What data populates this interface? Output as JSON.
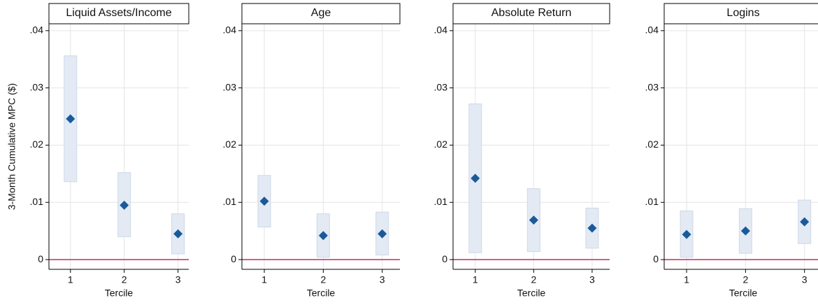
{
  "chart_data": [
    {
      "type": "scatter",
      "title": "Liquid Assets/Income",
      "ylabel": "3-Month Cumulative MPC ($)",
      "xlabel": "Tercile",
      "x": [
        1,
        2,
        3
      ],
      "values": [
        0.0246,
        0.0095,
        0.0045
      ],
      "lower": [
        0.0136,
        0.004,
        0.001
      ],
      "upper": [
        0.0356,
        0.0152,
        0.008
      ],
      "xlim": [
        0.6,
        3.2
      ],
      "xticks": [
        1,
        2,
        3
      ],
      "ylim": [
        -0.0017,
        0.0412
      ],
      "yticks": [
        0,
        {
          "value": 0.01,
          "label": ".01"
        },
        {
          "value": 0.02,
          "label": ".02"
        },
        {
          "value": 0.03,
          "label": ".03"
        },
        {
          "value": 0.04,
          "label": ".04"
        }
      ],
      "hline": 0,
      "color": "#1a5a9a",
      "ci_color": "#e3eaf4",
      "hline_color": "#c0305a",
      "grid": true
    },
    {
      "type": "scatter",
      "title": "Age",
      "xlabel": "Tercile",
      "x": [
        1,
        2,
        3
      ],
      "values": [
        0.0102,
        0.0042,
        0.0045
      ],
      "lower": [
        0.0057,
        0.0004,
        0.0008
      ],
      "upper": [
        0.0147,
        0.008,
        0.0083
      ],
      "xlim": [
        0.62,
        3.3
      ],
      "xticks": [
        1,
        2,
        3
      ],
      "ylim": [
        -0.0017,
        0.0412
      ],
      "yticks": [
        0,
        {
          "value": 0.01,
          "label": ".01"
        },
        {
          "value": 0.02,
          "label": ".02"
        },
        {
          "value": 0.03,
          "label": ".03"
        },
        {
          "value": 0.04,
          "label": ".04"
        }
      ],
      "hline": 0,
      "color": "#1a5a9a",
      "ci_color": "#e3eaf4",
      "hline_color": "#c0305a",
      "grid": true
    },
    {
      "type": "scatter",
      "title": "Absolute Return",
      "xlabel": "Tercile",
      "x": [
        1,
        2,
        3
      ],
      "values": [
        0.0142,
        0.0069,
        0.0055
      ],
      "lower": [
        0.0012,
        0.0014,
        0.002
      ],
      "upper": [
        0.0272,
        0.0124,
        0.009
      ],
      "xlim": [
        0.62,
        3.3
      ],
      "xticks": [
        1,
        2,
        3
      ],
      "ylim": [
        -0.0017,
        0.0412
      ],
      "yticks": [
        0,
        {
          "value": 0.01,
          "label": ".01"
        },
        {
          "value": 0.02,
          "label": ".02"
        },
        {
          "value": 0.03,
          "label": ".03"
        },
        {
          "value": 0.04,
          "label": ".04"
        }
      ],
      "hline": 0,
      "color": "#1a5a9a",
      "ci_color": "#e3eaf4",
      "hline_color": "#c0305a",
      "grid": true
    },
    {
      "type": "scatter",
      "title": "Logins",
      "xlabel": "Tercile",
      "x": [
        1,
        2,
        3
      ],
      "values": [
        0.0044,
        0.005,
        0.0066
      ],
      "lower": [
        0.0004,
        0.0011,
        0.0028
      ],
      "upper": [
        0.0085,
        0.0089,
        0.0104
      ],
      "xlim": [
        0.62,
        3.3
      ],
      "xticks": [
        1,
        2,
        3
      ],
      "ylim": [
        -0.0017,
        0.0412
      ],
      "yticks": [
        0,
        {
          "value": 0.01,
          "label": ".01"
        },
        {
          "value": 0.02,
          "label": ".02"
        },
        {
          "value": 0.03,
          "label": ".03"
        },
        {
          "value": 0.04,
          "label": ".04"
        }
      ],
      "hline": 0,
      "color": "#1a5a9a",
      "ci_color": "#e3eaf4",
      "hline_color": "#c0305a",
      "grid": true
    }
  ]
}
